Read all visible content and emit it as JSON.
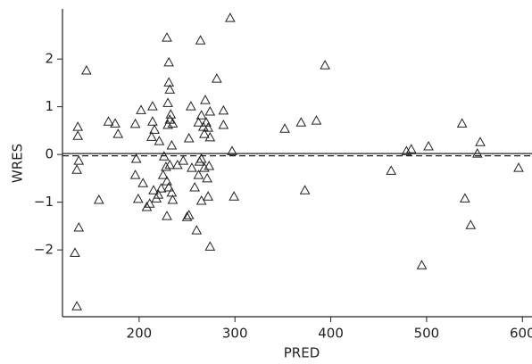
{
  "chart_data": {
    "type": "scatter",
    "x_label": "PRED",
    "y_label": "WRES",
    "xlim": [
      120,
      610
    ],
    "ylim": [
      -3.4,
      3.05
    ],
    "xticks": [
      200,
      300,
      400,
      500,
      600
    ],
    "yticks": [
      {
        "value": -2,
        "label": "−2"
      },
      {
        "value": -1,
        "label": "−1"
      },
      0,
      1,
      2
    ],
    "reference_line": 0,
    "color": "#222222",
    "series": [
      {
        "name": null,
        "x": [
          135,
          133,
          137,
          135,
          137,
          136,
          136,
          145,
          158,
          168,
          175,
          178,
          196,
          202,
          196,
          197,
          199,
          204,
          208,
          211,
          213,
          214,
          216,
          214,
          215,
          218,
          220,
          221,
          223,
          225,
          226,
          228,
          229,
          230,
          230,
          231,
          231,
          232,
          232,
          233,
          234,
          232,
          229,
          231,
          234,
          235,
          229,
          235,
          240,
          246,
          250,
          252,
          252,
          254,
          255,
          258,
          260,
          262,
          262,
          263,
          264,
          265,
          265,
          265,
          267,
          268,
          268,
          269,
          270,
          271,
          272,
          272,
          273,
          274,
          274,
          274,
          281,
          288,
          288,
          295,
          297,
          299,
          352,
          369,
          373,
          385,
          394,
          463,
          479,
          484,
          495,
          502,
          537,
          540,
          546,
          553,
          556,
          596
        ],
        "values": [
          -3.18,
          -2.06,
          -1.53,
          -0.32,
          -0.13,
          0.39,
          0.58,
          1.76,
          -0.95,
          0.69,
          0.65,
          0.43,
          0.64,
          0.93,
          -0.43,
          -0.09,
          -0.93,
          -0.6,
          -1.1,
          -1.03,
          0.37,
          0.69,
          0.52,
          1.01,
          -0.75,
          -0.92,
          -0.84,
          0.28,
          -0.71,
          -0.43,
          -0.04,
          -0.26,
          2.45,
          0.62,
          1.08,
          1.93,
          1.51,
          1.36,
          0.73,
          0.84,
          0.19,
          -0.22,
          -0.56,
          -0.69,
          -0.8,
          -0.95,
          -1.29,
          0.65,
          -0.22,
          -0.13,
          -1.31,
          -1.27,
          0.34,
          1.01,
          -0.28,
          -0.69,
          -1.59,
          -0.43,
          0.67,
          -0.15,
          2.39,
          0.82,
          -0.09,
          -0.97,
          0.58,
          -0.28,
          0.43,
          1.14,
          0.67,
          -0.5,
          0.56,
          -0.88,
          -0.24,
          0.36,
          0.9,
          -1.93,
          1.59,
          0.92,
          0.62,
          2.86,
          0.07,
          -0.88,
          0.54,
          0.67,
          -0.75,
          0.71,
          1.87,
          -0.34,
          0.07,
          0.11,
          -2.32,
          0.17,
          0.65,
          -0.92,
          -1.48,
          0.02,
          0.26,
          -0.28
        ]
      }
    ]
  }
}
